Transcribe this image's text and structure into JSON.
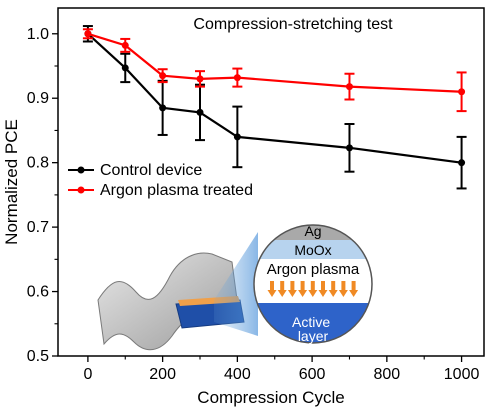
{
  "chart_data": {
    "type": "line",
    "title": "Compression-stretching test",
    "xlabel": "Compression Cycle",
    "ylabel": "Normalized PCE",
    "xlim": [
      -80,
      1060
    ],
    "ylim": [
      0.5,
      1.04
    ],
    "xticks": [
      0,
      200,
      400,
      600,
      800,
      1000
    ],
    "xtick_minor": [
      100,
      300,
      500,
      700,
      900
    ],
    "yticks": [
      0.5,
      0.6,
      0.7,
      0.8,
      0.9,
      1.0
    ],
    "ytick_labels": [
      "0.5",
      "0.6",
      "0.7",
      "0.8",
      "0.9",
      "1.0"
    ],
    "ytick_minor": [
      0.55,
      0.65,
      0.75,
      0.85,
      0.95
    ],
    "grid": false,
    "legend_position": "middle-left",
    "series": [
      {
        "name": "Control device",
        "color": "#000000",
        "x": [
          0,
          100,
          200,
          300,
          400,
          700,
          1000
        ],
        "y": [
          1.0,
          0.947,
          0.885,
          0.878,
          0.84,
          0.823,
          0.8
        ],
        "error": [
          0.012,
          0.022,
          0.042,
          0.043,
          0.047,
          0.037,
          0.04
        ]
      },
      {
        "name": "Argon plasma treated",
        "color": "#ff0000",
        "x": [
          0,
          100,
          200,
          300,
          400,
          700,
          1000
        ],
        "y": [
          1.0,
          0.982,
          0.935,
          0.93,
          0.932,
          0.918,
          0.91
        ],
        "error": [
          0.007,
          0.01,
          0.01,
          0.012,
          0.014,
          0.02,
          0.03
        ]
      }
    ],
    "inset": {
      "layers": [
        {
          "label": "Ag",
          "color": "#a9a9a9"
        },
        {
          "label": "MoOx",
          "color": "#b7d3ee"
        },
        {
          "label": "Argon plasma",
          "color": "#ffffff"
        },
        {
          "label": "",
          "color": "#ffffff"
        },
        {
          "label": "Active\nlayer",
          "color": "#2e63c9"
        }
      ],
      "arrow_color": "#f08a24"
    }
  }
}
